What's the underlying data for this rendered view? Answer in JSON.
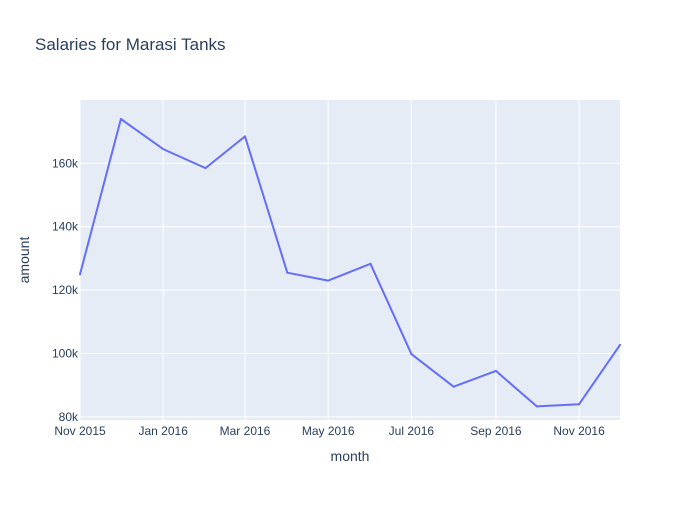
{
  "chart_data": {
    "type": "line",
    "title": "Salaries for Marasi Tanks",
    "xlabel": "month",
    "ylabel": "amount",
    "x": [
      "2015-11-01",
      "2015-12-01",
      "2016-01-01",
      "2016-02-01",
      "2016-03-01",
      "2016-04-01",
      "2016-05-01",
      "2016-06-01",
      "2016-07-01",
      "2016-08-01",
      "2016-09-01",
      "2016-10-01",
      "2016-11-01",
      "2016-12-01"
    ],
    "series": [
      {
        "values": [
          125000,
          174000,
          164500,
          158500,
          168500,
          125500,
          123000,
          128300,
          99800,
          89500,
          94500,
          83300,
          84000,
          102700
        ]
      }
    ],
    "xlim": [
      "2015-11-01",
      "2016-12-01"
    ],
    "ylim": [
      79000,
      180000
    ],
    "x_ticks": [
      {
        "value": "2015-11-01",
        "label": "Nov 2015"
      },
      {
        "value": "2016-01-01",
        "label": "Jan 2016"
      },
      {
        "value": "2016-03-01",
        "label": "Mar 2016"
      },
      {
        "value": "2016-05-01",
        "label": "May 2016"
      },
      {
        "value": "2016-07-01",
        "label": "Jul 2016"
      },
      {
        "value": "2016-09-01",
        "label": "Sep 2016"
      },
      {
        "value": "2016-11-01",
        "label": "Nov 2016"
      }
    ],
    "y_ticks": [
      {
        "value": 80000,
        "label": "80k"
      },
      {
        "value": 100000,
        "label": "100k"
      },
      {
        "value": 120000,
        "label": "120k"
      },
      {
        "value": 140000,
        "label": "140k"
      },
      {
        "value": 160000,
        "label": "160k"
      }
    ],
    "grid": true,
    "colors": {
      "plot_background": "#e5ecf6",
      "series": "#636efa",
      "grid": "#ffffff",
      "text": "#2a3f5f"
    }
  }
}
